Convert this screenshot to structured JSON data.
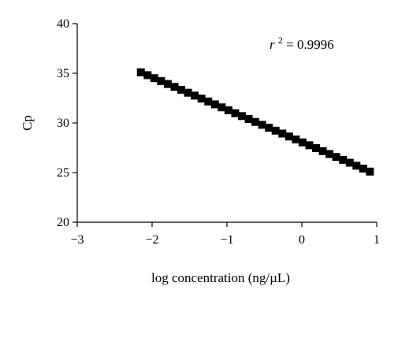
{
  "chart_data": {
    "type": "scatter",
    "title": "",
    "xlabel": "log concentration (ng/µL)",
    "ylabel": "Cp",
    "xlim": [
      -3,
      1
    ],
    "ylim": [
      20,
      40
    ],
    "xticks": [
      -3,
      -2,
      -1,
      0,
      1
    ],
    "yticks": [
      20,
      25,
      30,
      35,
      40
    ],
    "xtick_labels": [
      "−3",
      "−2",
      "−1",
      "0",
      "1"
    ],
    "ytick_labels": [
      "20",
      "25",
      "30",
      "35",
      "40"
    ],
    "grid": false,
    "annotation": {
      "r_symbol": "r",
      "r_exponent": "2",
      "r_value_text": " = 0.9996"
    },
    "marker_color": "#000000",
    "series": [
      {
        "x": [
          -2.15,
          -2.06,
          -1.97,
          -1.88,
          -1.79,
          -1.7,
          -1.61,
          -1.52,
          -1.43,
          -1.34,
          -1.25,
          -1.16,
          -1.07,
          -0.98,
          -0.89,
          -0.8,
          -0.71,
          -0.62,
          -0.53,
          -0.44,
          -0.35,
          -0.26,
          -0.17,
          -0.08,
          0.01,
          0.1,
          0.19,
          0.28,
          0.37,
          0.46,
          0.55,
          0.64,
          0.73,
          0.82,
          0.91
        ],
        "y": [
          35.1,
          34.81,
          34.51,
          34.22,
          33.92,
          33.63,
          33.34,
          33.04,
          32.75,
          32.45,
          32.16,
          31.87,
          31.57,
          31.28,
          30.98,
          30.69,
          30.4,
          30.1,
          29.81,
          29.51,
          29.22,
          28.93,
          28.63,
          28.34,
          28.04,
          27.75,
          27.46,
          27.16,
          26.87,
          26.57,
          26.28,
          25.99,
          25.69,
          25.4,
          25.1
        ]
      }
    ]
  }
}
